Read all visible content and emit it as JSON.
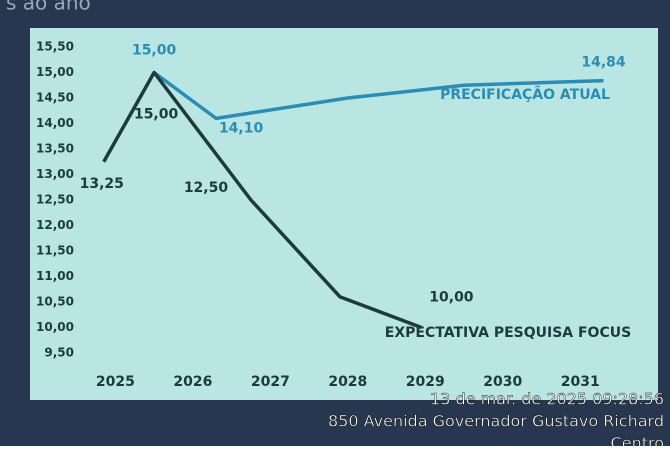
{
  "chart_data": {
    "type": "line",
    "title_fragment": "s ao ano",
    "xlim": [
      2024.75,
      2031.5
    ],
    "xticks": [
      2025,
      2026,
      2027,
      2028,
      2029,
      2030,
      2031
    ],
    "ylim": [
      9.5,
      15.5
    ],
    "yticks": [
      {
        "value": 9.5,
        "label": "9,50"
      },
      {
        "value": 10,
        "label": "10,00"
      },
      {
        "value": 10.5,
        "label": "10,50"
      },
      {
        "value": 11,
        "label": "11,00"
      },
      {
        "value": 11.5,
        "label": "11,50"
      },
      {
        "value": 12,
        "label": "12,00"
      },
      {
        "value": 12.5,
        "label": "12,50"
      },
      {
        "value": 13,
        "label": "13,00"
      },
      {
        "value": 13.5,
        "label": "13,50"
      },
      {
        "value": 14,
        "label": "14,00"
      },
      {
        "value": 14.5,
        "label": "14,50"
      },
      {
        "value": 15,
        "label": "15,00"
      },
      {
        "value": 15.5,
        "label": "15,50"
      }
    ],
    "series": [
      {
        "name": "PRECIFICAÇÃO ATUAL",
        "color": "#2b8db3",
        "x": [
          2025.5,
          2026.3,
          2028.0,
          2029.5,
          2031.3
        ],
        "values": [
          15.0,
          14.1,
          14.5,
          14.75,
          14.84
        ],
        "value_labels": [
          "15,00",
          "14,10",
          null,
          null,
          "14,84"
        ]
      },
      {
        "name": "EXPECTATIVA PESQUISA FOCUS",
        "color": "#1d3b3f",
        "x": [
          2024.85,
          2025.5,
          2026.75,
          2027.9,
          2028.95
        ],
        "values": [
          13.25,
          15.0,
          12.5,
          10.6,
          10.0
        ],
        "value_labels": [
          "13,25",
          "15,00",
          "12,50",
          null,
          "10,00"
        ]
      }
    ]
  },
  "photo_overlay": {
    "lines": [
      "13 de mar. de 2025 09:28:56",
      "850 Avenida Governador Gustavo Richard",
      "Centro"
    ]
  }
}
